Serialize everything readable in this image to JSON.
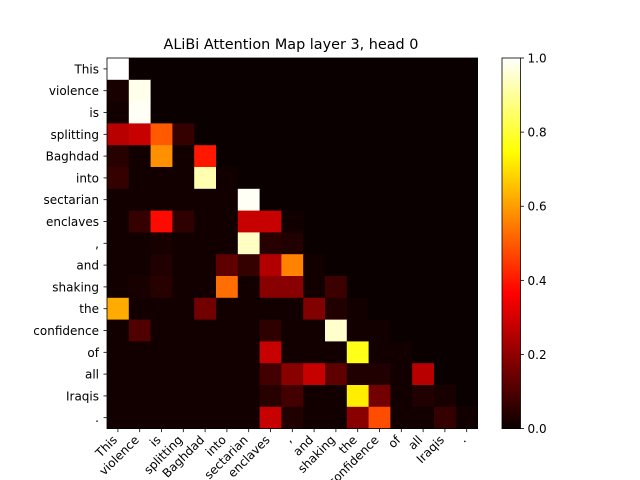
{
  "chart_data": {
    "type": "heatmap",
    "title": "ALiBi Attention Map layer 3, head 0",
    "tokens": [
      "This",
      "violence",
      "is",
      "splitting",
      "Baghdad",
      "into",
      "sectarian",
      "enclaves",
      ",",
      "and",
      "shaking",
      "the",
      "confidence",
      "of",
      "all",
      "Iraqis",
      "."
    ],
    "matrix": [
      [
        1.0,
        0,
        0,
        0,
        0,
        0,
        0,
        0,
        0,
        0,
        0,
        0,
        0,
        0,
        0,
        0,
        0
      ],
      [
        0.02,
        0.98,
        0,
        0,
        0,
        0,
        0,
        0,
        0,
        0,
        0,
        0,
        0,
        0,
        0,
        0,
        0
      ],
      [
        0.01,
        0.99,
        0,
        0,
        0,
        0,
        0,
        0,
        0,
        0,
        0,
        0,
        0,
        0,
        0,
        0,
        0
      ],
      [
        0.25,
        0.27,
        0.5,
        0.06,
        0,
        0,
        0,
        0,
        0,
        0,
        0,
        0,
        0,
        0,
        0,
        0,
        0
      ],
      [
        0.04,
        0.01,
        0.58,
        0.01,
        0.4,
        0,
        0,
        0,
        0,
        0,
        0,
        0,
        0,
        0,
        0,
        0,
        0
      ],
      [
        0.06,
        0.01,
        0.01,
        0.01,
        0.92,
        0.01,
        0,
        0,
        0,
        0,
        0,
        0,
        0,
        0,
        0,
        0,
        0
      ],
      [
        0.01,
        0.01,
        0.01,
        0.01,
        0.01,
        0.01,
        0.99,
        0,
        0,
        0,
        0,
        0,
        0,
        0,
        0,
        0,
        0
      ],
      [
        0.01,
        0.06,
        0.38,
        0.05,
        0.01,
        0.01,
        0.27,
        0.27,
        0.01,
        0,
        0,
        0,
        0,
        0,
        0,
        0,
        0
      ],
      [
        0.01,
        0.01,
        0.02,
        0.01,
        0.01,
        0.01,
        0.94,
        0.04,
        0.03,
        0,
        0,
        0,
        0,
        0,
        0,
        0,
        0
      ],
      [
        0.01,
        0.01,
        0.03,
        0.01,
        0.01,
        0.12,
        0.06,
        0.24,
        0.56,
        0.01,
        0,
        0,
        0,
        0,
        0,
        0,
        0
      ],
      [
        0.01,
        0.02,
        0.04,
        0.01,
        0.01,
        0.53,
        0.01,
        0.18,
        0.18,
        0.01,
        0.07,
        0,
        0,
        0,
        0,
        0,
        0
      ],
      [
        0.62,
        0.01,
        0.01,
        0.01,
        0.15,
        0.01,
        0.01,
        0.01,
        0.01,
        0.17,
        0.03,
        0.01,
        0,
        0,
        0,
        0,
        0
      ],
      [
        0.01,
        0.1,
        0.01,
        0.01,
        0.01,
        0.01,
        0.01,
        0.05,
        0.01,
        0.01,
        0.95,
        0.01,
        0.01,
        0,
        0,
        0,
        0
      ],
      [
        0.01,
        0.01,
        0.01,
        0.01,
        0.01,
        0.01,
        0.01,
        0.27,
        0.01,
        0.01,
        0.01,
        0.77,
        0.01,
        0.01,
        0,
        0,
        0
      ],
      [
        0.01,
        0.01,
        0.01,
        0.01,
        0.01,
        0.01,
        0.01,
        0.08,
        0.18,
        0.27,
        0.12,
        0.03,
        0.03,
        0.01,
        0.25,
        0,
        0
      ],
      [
        0.01,
        0.01,
        0.01,
        0.01,
        0.01,
        0.01,
        0.01,
        0.04,
        0.08,
        0.01,
        0.01,
        0.72,
        0.15,
        0.01,
        0.03,
        0.02,
        0
      ],
      [
        0.01,
        0.01,
        0.01,
        0.01,
        0.01,
        0.01,
        0.01,
        0.27,
        0.03,
        0.01,
        0.01,
        0.18,
        0.48,
        0.01,
        0.01,
        0.06,
        0.01
      ]
    ],
    "colormap": "hot",
    "vmin": 0.0,
    "vmax": 1.0,
    "colorbar_ticks": [
      "0.0",
      "0.2",
      "0.4",
      "0.6",
      "0.8",
      "1.0"
    ],
    "grid": false
  }
}
